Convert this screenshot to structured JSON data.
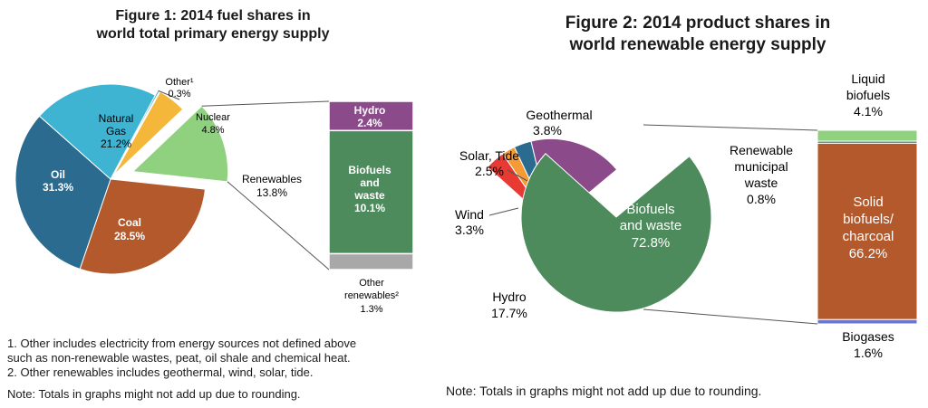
{
  "colors": {
    "oil": "#2a6b8f",
    "natural_gas": "#3fb4d2",
    "other": "#3fb4d2",
    "nuclear": "#f5b73a",
    "renewables": "#8fd17e",
    "coal": "#b3592b",
    "hydro": "#8b4a8a",
    "biofuels": "#4d8a5c",
    "other_renewables": "#a8a8a8",
    "geothermal": "#e63a33",
    "solar": "#f59a35",
    "wind": "#2a6b8f",
    "liquid": "#8fd17e",
    "solid": "#b3592b",
    "renewable_municipal": "#4d8a5c",
    "biogases": "#6a78c8"
  },
  "chart_data": [
    {
      "type": "pie",
      "title": "Figure 1: 2014 fuel shares in world total primary energy supply",
      "slices": [
        {
          "key": "other",
          "label": "Other¹",
          "value": 0.3,
          "display": "0.3%"
        },
        {
          "key": "nuclear",
          "label": "Nuclear",
          "value": 4.8,
          "display": "4.8%"
        },
        {
          "key": "renewables",
          "label": "Renewables",
          "value": 13.8,
          "display": "13.8%"
        },
        {
          "key": "coal",
          "label": "Coal",
          "value": 28.5,
          "display": "28.5%"
        },
        {
          "key": "oil",
          "label": "Oil",
          "value": 31.3,
          "display": "31.3%"
        },
        {
          "key": "natural_gas",
          "label": "Natural Gas",
          "value": 21.2,
          "display": "21.2%"
        }
      ],
      "breakdown": {
        "of": "Renewables",
        "segments": [
          {
            "key": "hydro",
            "label": "Hydro",
            "value": 2.4,
            "display": "2.4%"
          },
          {
            "key": "biofuels",
            "label": "Biofuels and waste",
            "value": 10.1,
            "display": "10.1%"
          },
          {
            "key": "other_renewables",
            "label": "Other renewables²",
            "value": 1.3,
            "display": "1.3%"
          }
        ]
      }
    },
    {
      "type": "pie",
      "title": "Figure 2: 2014 product shares in world renewable energy supply",
      "slices": [
        {
          "key": "geothermal",
          "label": "Geothermal",
          "value": 3.8,
          "display": "3.8%"
        },
        {
          "key": "solar",
          "label": "Solar, Tide",
          "value": 2.5,
          "display": "2.5%"
        },
        {
          "key": "wind",
          "label": "Wind",
          "value": 3.3,
          "display": "3.3%"
        },
        {
          "key": "hydro",
          "label": "Hydro",
          "value": 17.7,
          "display": "17.7%"
        },
        {
          "key": "biofuels",
          "label": "Biofuels and waste",
          "value": 72.8,
          "display": "72.8%"
        }
      ],
      "breakdown": {
        "of": "Biofuels and waste",
        "segments": [
          {
            "key": "liquid",
            "label": "Liquid biofuels",
            "value": 4.1,
            "display": "4.1%"
          },
          {
            "key": "renewable_municipal",
            "label": "Renewable municipal waste",
            "value": 0.8,
            "display": "0.8%"
          },
          {
            "key": "solid",
            "label": "Solid biofuels/ charcoal",
            "value": 66.2,
            "display": "66.2%"
          },
          {
            "key": "biogases",
            "label": "Biogases",
            "value": 1.6,
            "display": "1.6%"
          }
        ]
      }
    }
  ],
  "labels": {
    "fig1_title_line1": "Figure 1: 2014 fuel shares in",
    "fig1_title_line2": "world total primary energy supply",
    "fig2_title_line1": "Figure 2: 2014 product shares in",
    "fig2_title_line2": "world renewable energy supply",
    "other1_name": "Other¹",
    "other1_val": "0.3%",
    "nuclear_name": "Nuclear",
    "nuclear_val": "4.8%",
    "gas_name1": "Natural",
    "gas_name2": "Gas",
    "gas_val": "21.2%",
    "oil_name": "Oil",
    "oil_val": "31.3%",
    "coal_name": "Coal",
    "coal_val": "28.5%",
    "renew_name": "Renewables",
    "renew_val": "13.8%",
    "hydro1_name": "Hydro",
    "hydro1_val": "2.4%",
    "bio1_name1": "Biofuels",
    "bio1_name2": "and",
    "bio1_name3": "waste",
    "bio1_val": "10.1%",
    "otherren_name1": "Other",
    "otherren_name2": "renewables²",
    "otherren_val": "1.3%",
    "geo_name": "Geothermal",
    "geo_val": "3.8%",
    "solar_name": "Solar, Tide",
    "solar_val": "2.5%",
    "wind_name": "Wind",
    "wind_val": "3.3%",
    "hydro2_name": "Hydro",
    "hydro2_val": "17.7%",
    "bio2_name1": "Biofuels",
    "bio2_name2": "and waste",
    "bio2_val": "72.8%",
    "liquid_name1": "Liquid",
    "liquid_name2": "biofuels",
    "liquid_val": "4.1%",
    "rmw_name1": "Renewable",
    "rmw_name2": "municipal",
    "rmw_name3": "waste",
    "rmw_val": "0.8%",
    "solid_name1": "Solid",
    "solid_name2": "biofuels/",
    "solid_name3": "charcoal",
    "solid_val": "66.2%",
    "biogas_name": "Biogases",
    "biogas_val": "1.6%"
  },
  "footnotes": {
    "fn1_line1": "1. Other includes electricity from energy sources not defined above",
    "fn1_line2": "such as non-renewable wastes, peat, oil shale and chemical heat.",
    "fn2": "2. Other renewables includes geothermal, wind, solar, tide.",
    "note1": "Note: Totals in graphs might not add up due to rounding.",
    "note2": "Note: Totals in graphs might not add up due to rounding."
  }
}
